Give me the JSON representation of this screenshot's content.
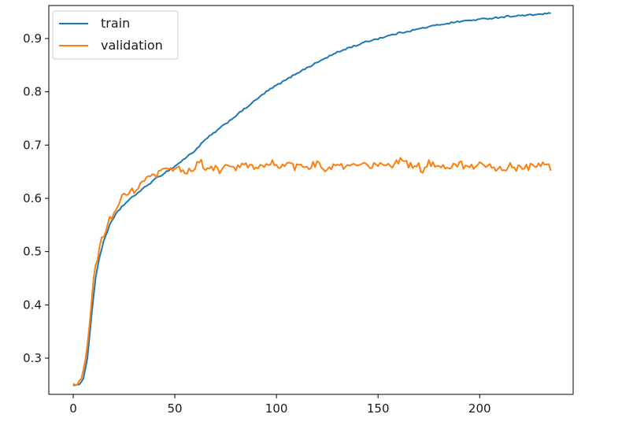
{
  "chart_data": {
    "type": "line",
    "title": "",
    "xlabel": "",
    "ylabel": "",
    "xlim": [
      -12,
      246
    ],
    "ylim": [
      0.232,
      0.962
    ],
    "x_ticks": [
      0,
      50,
      100,
      150,
      200
    ],
    "y_ticks": [
      0.3,
      0.4,
      0.5,
      0.6,
      0.7,
      0.8,
      0.9
    ],
    "grid": false,
    "legend_position": "upper-left",
    "n_points": 236,
    "series": [
      {
        "name": "train",
        "color": "#1f77b4",
        "x": [
          0,
          3,
          5,
          7,
          9,
          11,
          13,
          15,
          18,
          21,
          24,
          27,
          30,
          35,
          40,
          45,
          50,
          55,
          60,
          65,
          70,
          75,
          80,
          85,
          90,
          95,
          100,
          105,
          110,
          115,
          120,
          125,
          130,
          135,
          140,
          145,
          150,
          155,
          160,
          165,
          170,
          175,
          180,
          185,
          190,
          195,
          200,
          205,
          210,
          215,
          220,
          225,
          230,
          235
        ],
        "values": [
          0.249,
          0.25,
          0.262,
          0.3,
          0.38,
          0.45,
          0.49,
          0.52,
          0.55,
          0.57,
          0.585,
          0.595,
          0.605,
          0.62,
          0.635,
          0.648,
          0.66,
          0.675,
          0.69,
          0.71,
          0.725,
          0.74,
          0.755,
          0.77,
          0.785,
          0.8,
          0.812,
          0.823,
          0.835,
          0.845,
          0.855,
          0.865,
          0.874,
          0.882,
          0.888,
          0.895,
          0.9,
          0.905,
          0.91,
          0.914,
          0.918,
          0.922,
          0.926,
          0.929,
          0.932,
          0.934,
          0.936,
          0.938,
          0.94,
          0.942,
          0.943,
          0.944,
          0.946,
          0.947
        ]
      },
      {
        "name": "validation",
        "color": "#ff7f0e",
        "x": [
          0,
          2,
          4,
          6,
          8,
          10,
          12,
          14,
          16,
          18,
          20,
          22,
          24,
          26,
          28,
          30,
          32,
          34,
          36,
          38,
          40,
          42,
          44,
          46,
          48,
          50,
          55,
          60,
          63,
          65,
          70,
          72,
          75,
          80,
          85,
          90,
          95,
          98,
          100,
          105,
          110,
          115,
          120,
          125,
          130,
          135,
          140,
          145,
          150,
          155,
          160,
          162,
          165,
          170,
          172,
          175,
          180,
          185,
          190,
          195,
          200,
          205,
          210,
          215,
          220,
          225,
          230,
          233,
          235
        ],
        "values": [
          0.25,
          0.25,
          0.262,
          0.295,
          0.36,
          0.45,
          0.49,
          0.52,
          0.54,
          0.56,
          0.575,
          0.585,
          0.6,
          0.605,
          0.61,
          0.615,
          0.62,
          0.63,
          0.635,
          0.638,
          0.64,
          0.645,
          0.65,
          0.652,
          0.655,
          0.658,
          0.65,
          0.66,
          0.668,
          0.655,
          0.66,
          0.645,
          0.662,
          0.655,
          0.665,
          0.655,
          0.66,
          0.672,
          0.66,
          0.662,
          0.658,
          0.66,
          0.665,
          0.655,
          0.66,
          0.658,
          0.662,
          0.66,
          0.665,
          0.66,
          0.667,
          0.675,
          0.66,
          0.665,
          0.645,
          0.668,
          0.662,
          0.66,
          0.665,
          0.655,
          0.665,
          0.66,
          0.655,
          0.66,
          0.655,
          0.66,
          0.665,
          0.66,
          0.658
        ]
      }
    ]
  }
}
